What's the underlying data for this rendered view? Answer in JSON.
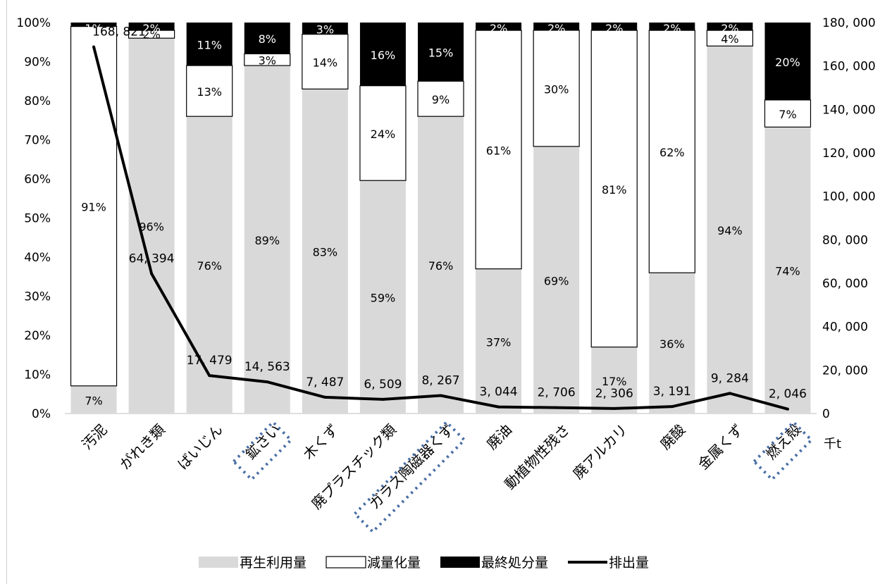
{
  "title": "",
  "chart_data": {
    "type": "bar",
    "stacked": true,
    "normalized": true,
    "categories": [
      "汚泥",
      "がれき類",
      "ばいじん",
      "鉱さい",
      "木くず",
      "廃プラスチック類",
      "ガラス陶磁器くず",
      "廃油",
      "動植物性残さ",
      "廃アルカリ",
      "廃酸",
      "金属くず",
      "燃え殻"
    ],
    "series": [
      {
        "name": "再生利用量",
        "kind": "bar",
        "color": "#d9d9d9",
        "values": [
          7,
          96,
          76,
          89,
          83,
          59,
          76,
          37,
          69,
          17,
          36,
          94,
          74
        ],
        "labels": [
          "7%",
          "96%",
          "76%",
          "89%",
          "83%",
          "59%",
          "76%",
          "37%",
          "69%",
          "17%",
          "36%",
          "94%",
          "74%"
        ]
      },
      {
        "name": "減量化量",
        "kind": "bar",
        "color": "#ffffff",
        "values": [
          91,
          2,
          13,
          3,
          14,
          24,
          9,
          61,
          30,
          81,
          62,
          4,
          7
        ],
        "labels": [
          "91%",
          "2%",
          "13%",
          "3%",
          "14%",
          "24%",
          "9%",
          "61%",
          "30%",
          "81%",
          "62%",
          "4%",
          "7%"
        ]
      },
      {
        "name": "最終処分量",
        "kind": "bar",
        "color": "#000000",
        "values": [
          1,
          2,
          11,
          8,
          3,
          16,
          15,
          2,
          2,
          2,
          2,
          2,
          20
        ],
        "labels": [
          "1%",
          "2%",
          "11%",
          "8%",
          "3%",
          "16%",
          "15%",
          "2%",
          "2%",
          "2%",
          "2%",
          "2%",
          "20%"
        ]
      },
      {
        "name": "排出量",
        "kind": "line",
        "color": "#000000",
        "axis": "right",
        "values": [
          168821,
          64394,
          17479,
          14563,
          7487,
          6509,
          8267,
          3044,
          2706,
          2306,
          3191,
          9284,
          2046
        ],
        "labels": [
          "168, 821",
          "64, 394",
          "17, 479",
          "14, 563",
          "7, 487",
          "6, 509",
          "8, 267",
          "3, 044",
          "2, 706",
          "2, 306",
          "3, 191",
          "9, 284",
          "2, 046"
        ]
      }
    ],
    "y_left": {
      "ylim": [
        0,
        100
      ],
      "ticks": [
        "0%",
        "10%",
        "20%",
        "30%",
        "40%",
        "50%",
        "60%",
        "70%",
        "80%",
        "90%",
        "100%"
      ]
    },
    "y_right": {
      "ylim": [
        0,
        180000
      ],
      "ticks": [
        "0",
        "20, 000",
        "40, 000",
        "60, 000",
        "80, 000",
        "100, 000",
        "120, 000",
        "140, 000",
        "160, 000",
        "180, 000"
      ],
      "unit": "千t"
    },
    "highlighted_categories": [
      "鉱さい",
      "ガラス陶磁器くず",
      "燃え殻"
    ],
    "legend": {
      "position": "bottom",
      "items": [
        "再生利用量",
        "減量化量",
        "最終処分量",
        "排出量"
      ]
    },
    "grid": false
  }
}
